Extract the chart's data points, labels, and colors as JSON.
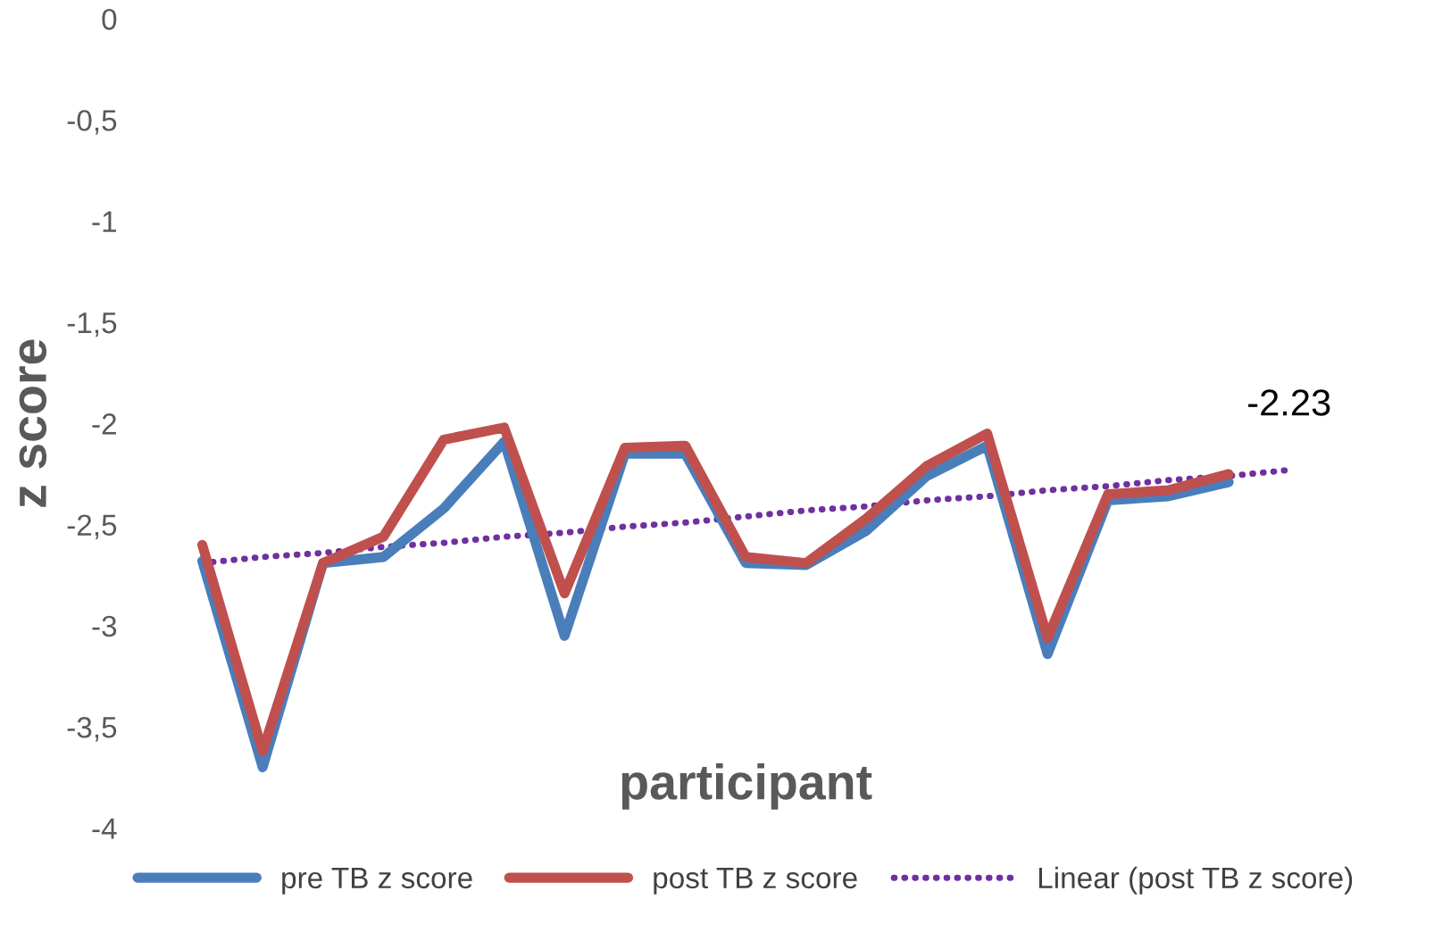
{
  "chart_data": {
    "type": "line",
    "xlabel": "participant",
    "ylabel": "z score",
    "categories": [
      null,
      null,
      null,
      null,
      null,
      null,
      null,
      null,
      null,
      null,
      null,
      null,
      null,
      null,
      null,
      null,
      null,
      null,
      null
    ],
    "series": [
      {
        "name": "pre TB z score",
        "color": "#4a7ebb",
        "values": [
          -2.68,
          -3.7,
          -2.69,
          -2.66,
          -2.42,
          -2.09,
          -3.05,
          -2.15,
          -2.15,
          -2.69,
          -2.7,
          -2.53,
          -2.26,
          -2.11,
          -3.14,
          -2.38,
          -2.36,
          -2.29,
          null
        ]
      },
      {
        "name": "post TB z score",
        "color": "#c0504d",
        "values": [
          -2.6,
          -3.62,
          -2.69,
          -2.56,
          -2.08,
          -2.02,
          -2.84,
          -2.12,
          -2.11,
          -2.66,
          -2.69,
          -2.47,
          -2.21,
          -2.05,
          -3.06,
          -2.35,
          -2.33,
          -2.25,
          null
        ]
      },
      {
        "name": "Linear (post TB z score)",
        "color": "#7030a0",
        "line_style": "dotted",
        "values": [
          -2.69,
          -2.66,
          -2.64,
          -2.61,
          -2.59,
          -2.56,
          -2.54,
          -2.51,
          -2.49,
          -2.46,
          -2.43,
          -2.41,
          -2.38,
          -2.36,
          -2.33,
          -2.31,
          -2.28,
          -2.26,
          -2.23
        ]
      }
    ],
    "annotations": [
      {
        "text": "-2.23",
        "y": -2.23
      }
    ],
    "ylim": [
      -4,
      0
    ],
    "yticks": [
      -4,
      {
        "value": -3.5,
        "label": "-3,5"
      },
      -3,
      {
        "value": -2.5,
        "label": "-2,5"
      },
      -2,
      {
        "value": -1.5,
        "label": "-1,5"
      },
      -1,
      {
        "value": -0.5,
        "label": "-0,5"
      },
      0
    ],
    "tick_labels": "y",
    "grid": false,
    "legend": "bottom",
    "line_style": "solid",
    "marker": "none"
  }
}
